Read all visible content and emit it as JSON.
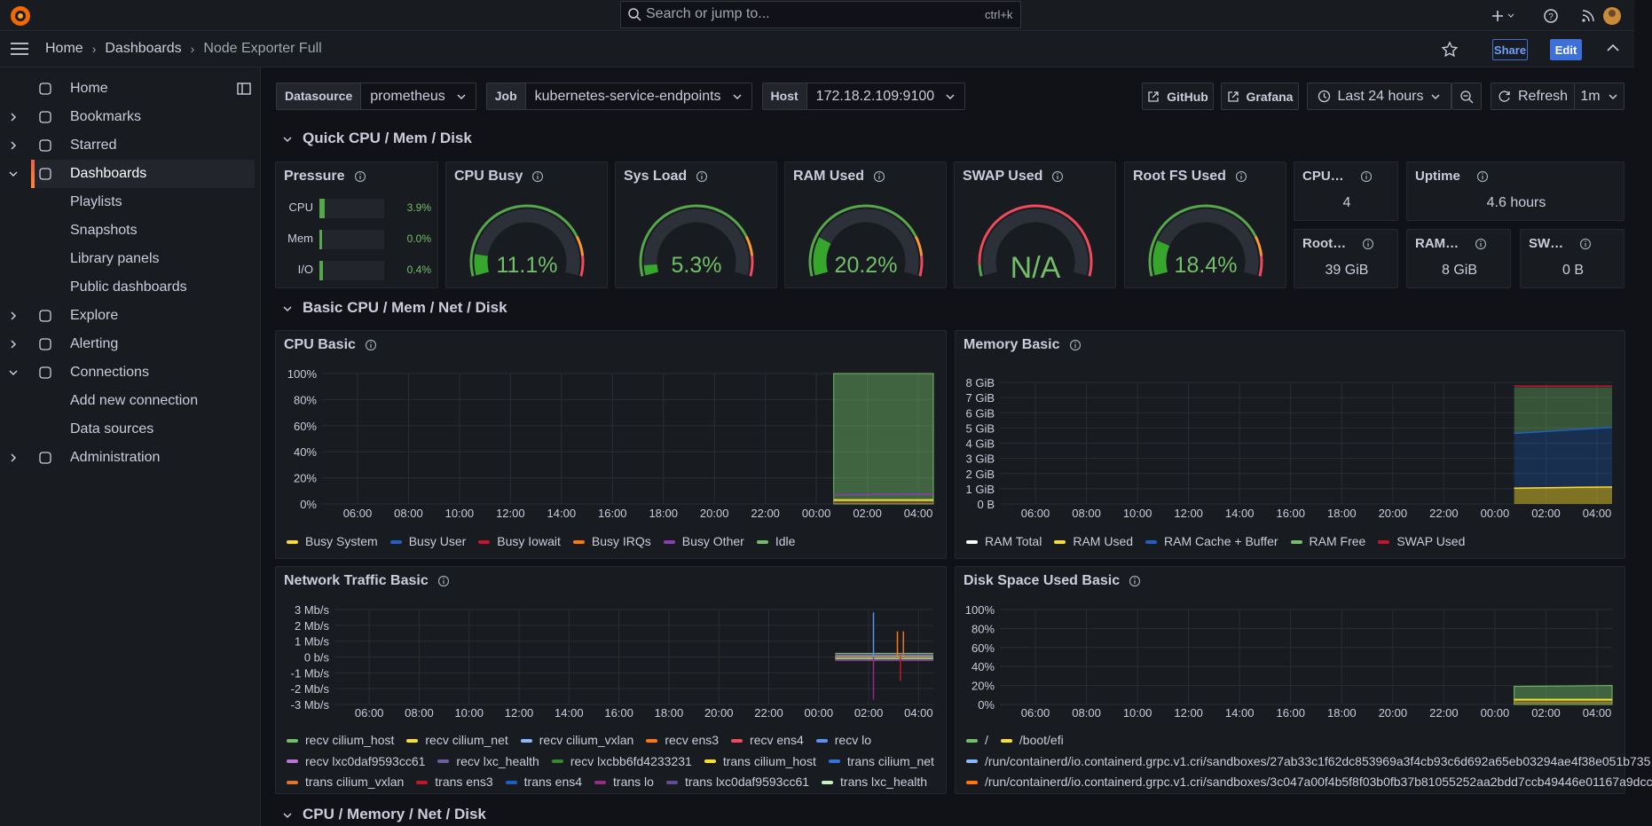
{
  "topbar": {
    "search_placeholder": "Search or jump to...",
    "shortcut": "ctrl+k"
  },
  "breadcrumbs": [
    "Home",
    "Dashboards",
    "Node Exporter Full"
  ],
  "actions": {
    "share": "Share",
    "edit": "Edit"
  },
  "nav": [
    {
      "label": "Home"
    },
    {
      "label": "Bookmarks",
      "collapsed": true
    },
    {
      "label": "Starred",
      "collapsed": true
    },
    {
      "label": "Dashboards",
      "active": true,
      "children": [
        "Playlists",
        "Snapshots",
        "Library panels",
        "Public dashboards"
      ]
    },
    {
      "label": "Explore",
      "collapsed": true
    },
    {
      "label": "Alerting",
      "collapsed": true
    },
    {
      "label": "Connections",
      "children": [
        "Add new connection",
        "Data sources"
      ]
    },
    {
      "label": "Administration",
      "collapsed": true
    }
  ],
  "variables": [
    {
      "label": "Datasource",
      "value": "prometheus"
    },
    {
      "label": "Job",
      "value": "kubernetes-service-endpoints"
    },
    {
      "label": "Host",
      "value": "172.18.2.109:9100"
    }
  ],
  "toolbar": {
    "links": [
      "GitHub",
      "Grafana"
    ],
    "time_range": "Last 24 hours",
    "refresh": "Refresh",
    "interval": "1m"
  },
  "rows": [
    "Quick CPU / Mem / Disk",
    "Basic CPU / Mem / Net / Disk",
    "CPU / Memory / Net / Disk"
  ],
  "pressure": {
    "title": "Pressure",
    "items": [
      {
        "label": "CPU",
        "value": "3.9%"
      },
      {
        "label": "Mem",
        "value": "0.0%"
      },
      {
        "label": "I/O",
        "value": "0.4%"
      }
    ]
  },
  "gauges": [
    {
      "title": "CPU Busy",
      "value": "11.1%"
    },
    {
      "title": "Sys Load",
      "value": "5.3%"
    },
    {
      "title": "RAM Used",
      "value": "20.2%"
    },
    {
      "title": "SWAP Used",
      "value": "N/A"
    },
    {
      "title": "Root FS Used",
      "value": "18.4%"
    }
  ],
  "stats": [
    {
      "title": "CPU…",
      "value": "4"
    },
    {
      "title": "Uptime",
      "value": "4.6 hours"
    },
    {
      "title": "Root…",
      "value": "39 GiB"
    },
    {
      "title": "RAM…",
      "value": "8 GiB"
    },
    {
      "title": "SW…",
      "value": "0 B"
    }
  ],
  "timeseries": [
    {
      "title": "CPU Basic",
      "yticks": [
        "100%",
        "80%",
        "60%",
        "40%",
        "20%",
        "0%"
      ],
      "xticks": [
        "06:00",
        "08:00",
        "10:00",
        "12:00",
        "14:00",
        "16:00",
        "18:00",
        "20:00",
        "22:00",
        "00:00",
        "02:00",
        "04:00"
      ],
      "legend": [
        {
          "name": "Busy System",
          "color": "#fade2a"
        },
        {
          "name": "Busy User",
          "color": "#1f60c4"
        },
        {
          "name": "Busy Iowait",
          "color": "#c4162a"
        },
        {
          "name": "Busy IRQs",
          "color": "#ff780a"
        },
        {
          "name": "Busy Other",
          "color": "#8f3bb8"
        },
        {
          "name": "Idle",
          "color": "#73bf69"
        }
      ]
    },
    {
      "title": "Memory Basic",
      "yticks": [
        "8 GiB",
        "7 GiB",
        "6 GiB",
        "5 GiB",
        "4 GiB",
        "3 GiB",
        "2 GiB",
        "1 GiB",
        "0 B"
      ],
      "xticks": [
        "06:00",
        "08:00",
        "10:00",
        "12:00",
        "14:00",
        "16:00",
        "18:00",
        "20:00",
        "22:00",
        "00:00",
        "02:00",
        "04:00"
      ],
      "legend": [
        {
          "name": "RAM Total",
          "color": "#ffffff"
        },
        {
          "name": "RAM Used",
          "color": "#fade2a"
        },
        {
          "name": "RAM Cache + Buffer",
          "color": "#1f60c4"
        },
        {
          "name": "RAM Free",
          "color": "#73bf69"
        },
        {
          "name": "SWAP Used",
          "color": "#c4162a"
        }
      ]
    },
    {
      "title": "Network Traffic Basic",
      "yticks": [
        "3 Mb/s",
        "2 Mb/s",
        "1 Mb/s",
        "0 b/s",
        "-1 Mb/s",
        "-2 Mb/s",
        "-3 Mb/s"
      ],
      "xticks": [
        "06:00",
        "08:00",
        "10:00",
        "12:00",
        "14:00",
        "16:00",
        "18:00",
        "20:00",
        "22:00",
        "00:00",
        "02:00",
        "04:00"
      ],
      "legend": [
        {
          "name": "recv cilium_host",
          "color": "#73bf69"
        },
        {
          "name": "recv cilium_net",
          "color": "#fade2a"
        },
        {
          "name": "recv cilium_vxlan",
          "color": "#8ab8ff"
        },
        {
          "name": "recv ens3",
          "color": "#ff780a"
        },
        {
          "name": "recv ens4",
          "color": "#f2495c"
        },
        {
          "name": "recv lo",
          "color": "#5794f2"
        },
        {
          "name": "recv lxc0daf9593cc61",
          "color": "#b877d9"
        },
        {
          "name": "recv lxc_health",
          "color": "#705da0"
        },
        {
          "name": "recv lxcbb6fd4233231",
          "color": "#37872d"
        },
        {
          "name": "trans cilium_host",
          "color": "#fade2a"
        },
        {
          "name": "trans cilium_net",
          "color": "#3274d9"
        },
        {
          "name": "trans cilium_vxlan",
          "color": "#e0752d"
        },
        {
          "name": "trans ens3",
          "color": "#c4162a"
        },
        {
          "name": "trans ens4",
          "color": "#1f60c4"
        },
        {
          "name": "trans lo",
          "color": "#962d82"
        },
        {
          "name": "trans lxc0daf9593cc61",
          "color": "#614d93"
        },
        {
          "name": "trans lxc_health",
          "color": "#c8f2c2"
        }
      ]
    },
    {
      "title": "Disk Space Used Basic",
      "yticks": [
        "100%",
        "80%",
        "60%",
        "40%",
        "20%",
        "0%"
      ],
      "xticks": [
        "06:00",
        "08:00",
        "10:00",
        "12:00",
        "14:00",
        "16:00",
        "18:00",
        "20:00",
        "22:00",
        "00:00",
        "02:00",
        "04:00"
      ],
      "legend": [
        {
          "name": "/",
          "color": "#73bf69"
        },
        {
          "name": "/boot/efi",
          "color": "#fade2a"
        },
        {
          "name": "/run/containerd/io.containerd.grpc.v1.cri/sandboxes/27ab33c1f62dc853969a3f4cb93c6d692a65eb03294ae4f38e051b735",
          "color": "#8ab8ff"
        },
        {
          "name": "/run/containerd/io.containerd.grpc.v1.cri/sandboxes/3c047a00f4b5f8f03b0fb37b81055252aa2bdd7ccb49446e01167a9dcc",
          "color": "#ff780a"
        }
      ]
    }
  ]
}
